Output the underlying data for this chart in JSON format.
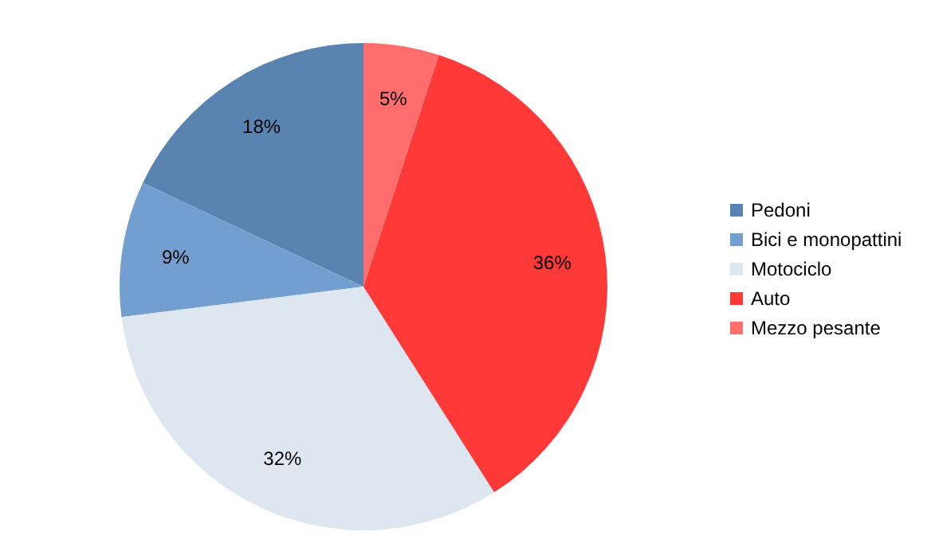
{
  "chart_data": {
    "type": "pie",
    "categories": [
      "Pedoni",
      "Bici e monopattini",
      "Motociclo",
      "Auto",
      "Mezzo pesante"
    ],
    "values": [
      18,
      9,
      32,
      36,
      5
    ],
    "value_labels": [
      "18%",
      "9%",
      "32%",
      "36%",
      "5%"
    ],
    "colors": [
      "#5983b0",
      "#729fcf",
      "#dee6ef",
      "#ff3838",
      "#ff6d6d"
    ],
    "legend": "right"
  }
}
